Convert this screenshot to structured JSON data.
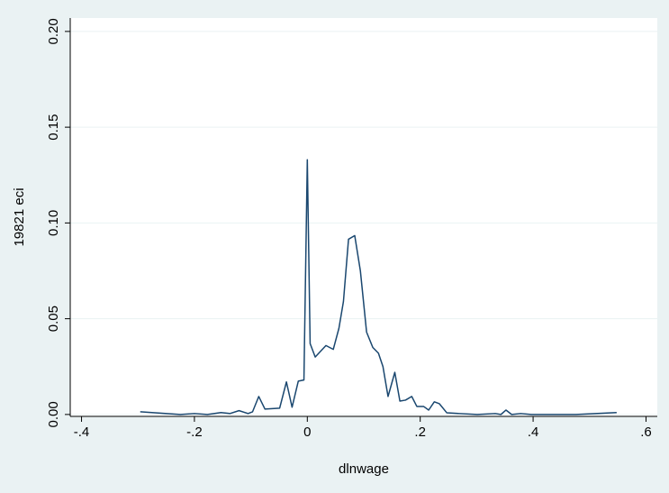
{
  "chart_data": {
    "type": "line",
    "x_label": "dlnwage",
    "y_label": "19821 eci",
    "x": [
      -0.296,
      -0.225,
      -0.2,
      -0.177,
      -0.153,
      -0.137,
      -0.121,
      -0.105,
      -0.097,
      -0.086,
      -0.075,
      -0.049,
      -0.037,
      -0.027,
      -0.016,
      -0.006,
      0,
      0.005,
      0.014,
      0.033,
      0.046,
      0.056,
      0.064,
      0.073,
      0.084,
      0.094,
      0.105,
      0.116,
      0.126,
      0.134,
      0.143,
      0.155,
      0.164,
      0.174,
      0.185,
      0.194,
      0.206,
      0.215,
      0.225,
      0.234,
      0.247,
      0.269,
      0.301,
      0.333,
      0.343,
      0.352,
      0.362,
      0.378,
      0.397,
      0.476,
      0.548
    ],
    "series": [
      {
        "name": "19821 eci",
        "color": "#1a476f",
        "values": [
          0.0014,
          0,
          0.0005,
          0,
          0.001,
          0.0005,
          0.002,
          0.0005,
          0.0014,
          0.0094,
          0.0028,
          0.0033,
          0.017,
          0.0038,
          0.0174,
          0.018,
          0.133,
          0.037,
          0.03,
          0.036,
          0.034,
          0.045,
          0.059,
          0.0915,
          0.0934,
          0.075,
          0.043,
          0.035,
          0.032,
          0.025,
          0.0094,
          0.022,
          0.007,
          0.0075,
          0.0094,
          0.0042,
          0.0042,
          0.0023,
          0.0066,
          0.0056,
          0.0009,
          0.0005,
          0,
          0.0005,
          0,
          0.0023,
          0,
          0.0005,
          0,
          0,
          0.001
        ]
      }
    ],
    "xlim": [
      -0.42,
      0.62
    ],
    "xticks": [
      {
        "value": -0.4,
        "label": "-.4"
      },
      {
        "value": -0.2,
        "label": "-.2"
      },
      0,
      {
        "value": 0.2,
        "label": ".2"
      },
      {
        "value": 0.4,
        "label": ".4"
      },
      {
        "value": 0.6,
        "label": ".6"
      }
    ],
    "ylim": [
      -0.001,
      0.207
    ],
    "yticks": [
      {
        "value": 0,
        "label": "0.00"
      },
      {
        "value": 0.05,
        "label": "0.05"
      },
      {
        "value": 0.1,
        "label": "0.10"
      },
      {
        "value": 0.15,
        "label": "0.15"
      },
      {
        "value": 0.2,
        "label": "0.20"
      }
    ],
    "grid": true
  }
}
